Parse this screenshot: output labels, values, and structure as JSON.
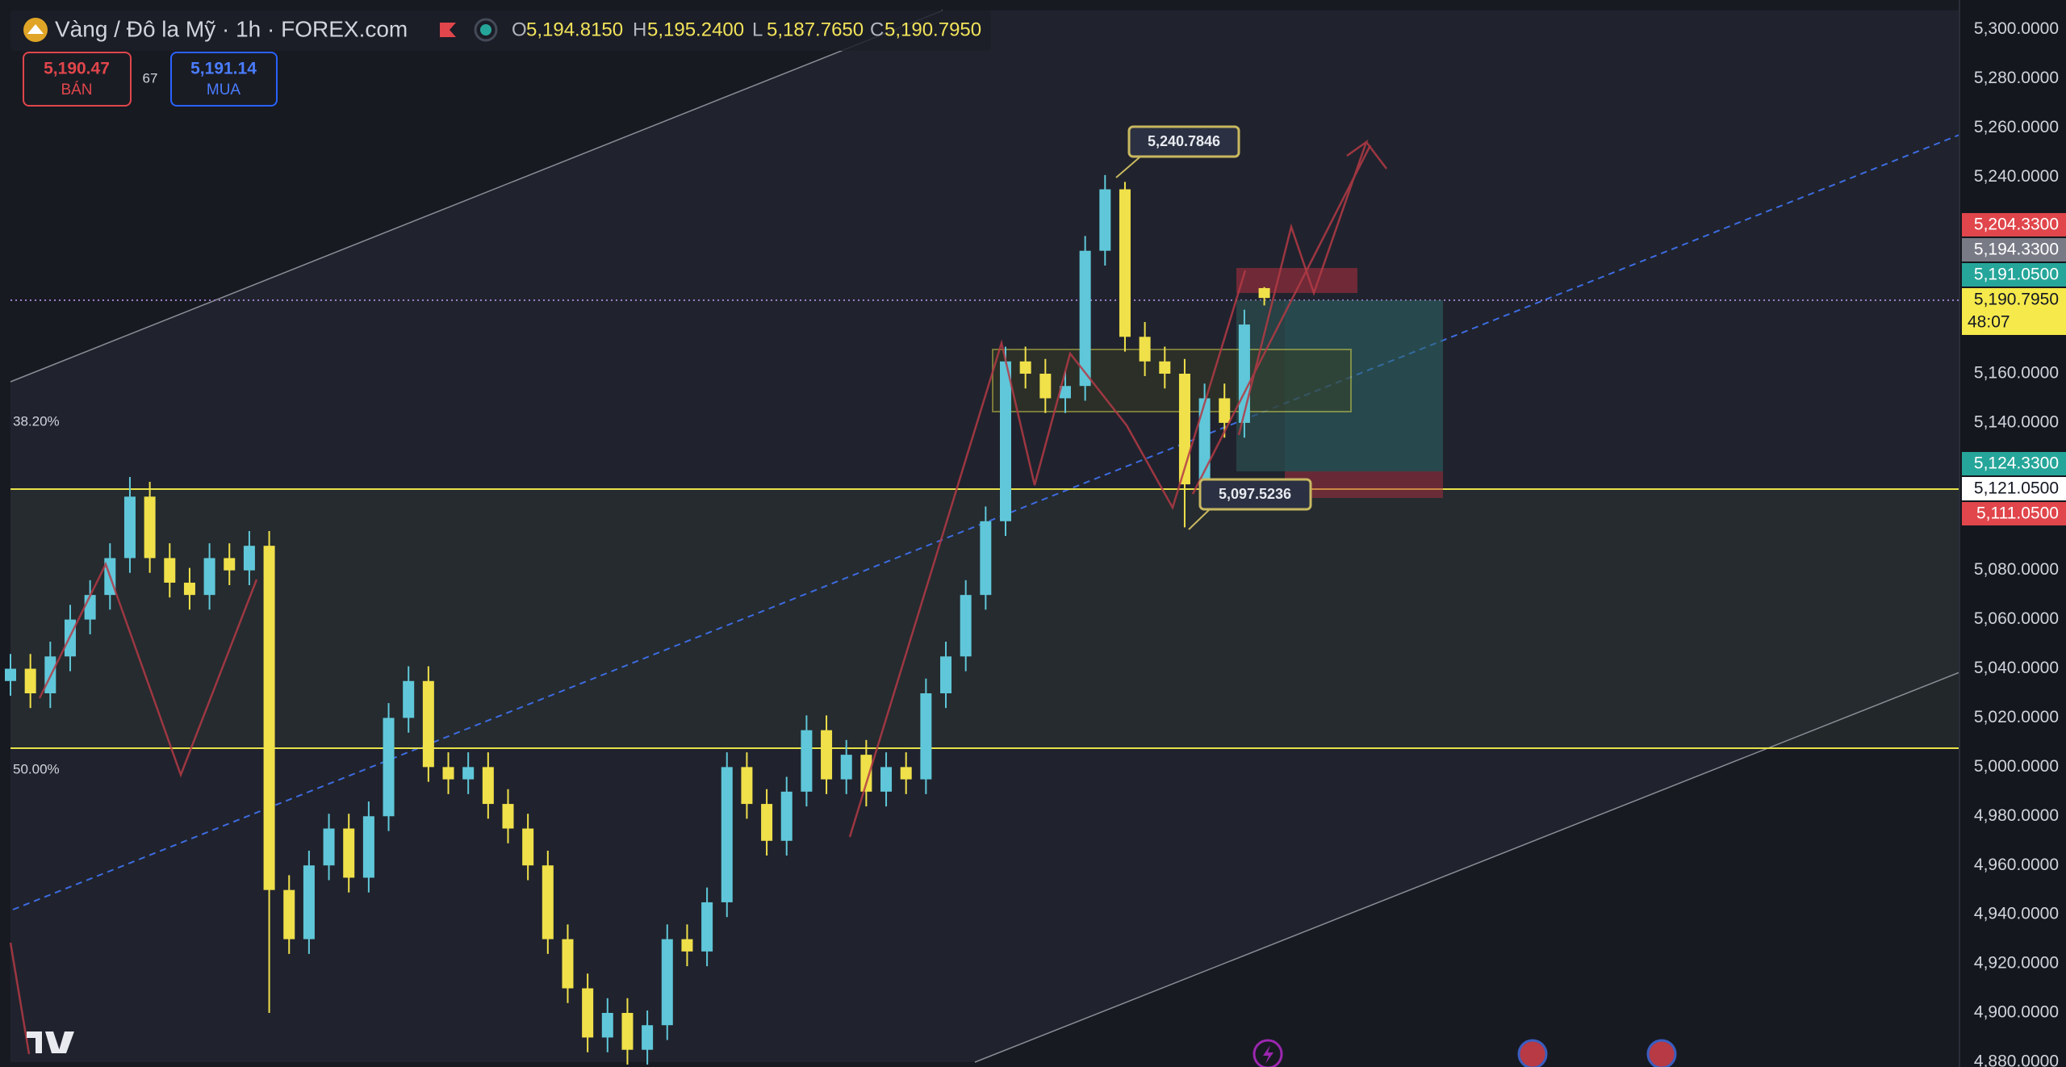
{
  "header": {
    "symbol": "Vàng / Đô la Mỹ · 1h · FOREX.com",
    "ohlc": [
      {
        "key": "O",
        "value": "5,194.8150"
      },
      {
        "key": "H",
        "value": "5,195.2400"
      },
      {
        "key": "L",
        "value": "5,187.7650"
      },
      {
        "key": "C",
        "value": "5,190.7950"
      }
    ]
  },
  "trade": {
    "sell_price": "5,190.47",
    "sell_label": "BÁN",
    "spread": "67",
    "buy_price": "5,191.14",
    "buy_label": "MUA"
  },
  "chart_data": {
    "type": "candlestick",
    "open": [
      5035,
      5040,
      5030,
      5045,
      5060,
      5070,
      5085,
      5110,
      5085,
      5075,
      5070,
      5085,
      5080,
      5090,
      4950,
      4930,
      4960,
      4975,
      4955,
      4980,
      5020,
      5035,
      5000,
      4995,
      5000,
      4985,
      4975,
      4960,
      4930,
      4910,
      4890,
      4900,
      4885,
      4895,
      4930,
      4925,
      4945,
      5000,
      4985,
      4970,
      4990,
      5015,
      4995,
      5005,
      4990,
      5000,
      4995,
      5030,
      5045,
      5070,
      5100,
      5165,
      5160,
      5150,
      5155,
      5210,
      5235,
      5175,
      5165,
      5160,
      5115,
      5150,
      5140,
      5194.815
    ],
    "high": [
      5046,
      5046,
      5051,
      5066,
      5076,
      5091,
      5118,
      5116,
      5091,
      5081,
      5091,
      5091,
      5096,
      5096,
      4956,
      4966,
      4981,
      4981,
      4986,
      5026,
      5041,
      5041,
      5006,
      5006,
      5006,
      4991,
      4981,
      4966,
      4936,
      4916,
      4906,
      4906,
      4901,
      4936,
      4936,
      4951,
      5006,
      5006,
      4991,
      4996,
      5021,
      5021,
      5011,
      5011,
      5006,
      5006,
      5036,
      5051,
      5076,
      5106,
      5171,
      5171,
      5166,
      5161,
      5216,
      5240.7846,
      5238,
      5181,
      5171,
      5166,
      5156,
      5156,
      5186,
      5195.24
    ],
    "low": [
      5029,
      5024,
      5024,
      5039,
      5054,
      5064,
      5079,
      5079,
      5069,
      5064,
      5064,
      5074,
      5074,
      4900,
      4924,
      4924,
      4954,
      4949,
      4949,
      4974,
      5014,
      4994,
      4989,
      4989,
      4979,
      4969,
      4954,
      4924,
      4904,
      4884,
      4884,
      4879,
      4879,
      4889,
      4919,
      4919,
      4939,
      4979,
      4964,
      4964,
      4984,
      4989,
      4989,
      4984,
      4984,
      4989,
      4989,
      5024,
      5039,
      5064,
      5094,
      5154,
      5144,
      5144,
      5149,
      5204,
      5169,
      5159,
      5154,
      5097.5236,
      5109,
      5134,
      5134,
      5187.765
    ],
    "close": [
      5040,
      5030,
      5045,
      5060,
      5070,
      5085,
      5110,
      5085,
      5075,
      5070,
      5085,
      5080,
      5090,
      4950,
      4930,
      4960,
      4975,
      4955,
      4980,
      5020,
      5035,
      5000,
      4995,
      5000,
      4985,
      4975,
      4960,
      4930,
      4910,
      4890,
      4900,
      4885,
      4895,
      4930,
      4925,
      4945,
      5000,
      4985,
      4970,
      4990,
      5015,
      4995,
      5005,
      4990,
      5000,
      4995,
      5030,
      5045,
      5070,
      5100,
      5165,
      5160,
      5150,
      5155,
      5210,
      5235,
      5175,
      5165,
      5160,
      5115,
      5150,
      5140,
      5180,
      5190.795
    ],
    "colors": {
      "up": "#5fc7d9",
      "down": "#f0e04a"
    },
    "ylim": [
      4878,
      5312
    ],
    "yticks": [
      {
        "value": 4880,
        "label": "4,880.0000"
      },
      {
        "value": 4900,
        "label": "4,900.0000"
      },
      {
        "value": 4920,
        "label": "4,920.0000"
      },
      {
        "value": 4940,
        "label": "4,940.0000"
      },
      {
        "value": 4960,
        "label": "4,960.0000"
      },
      {
        "value": 4980,
        "label": "4,980.0000"
      },
      {
        "value": 5000,
        "label": "5,000.0000"
      },
      {
        "value": 5020,
        "label": "5,020.0000"
      },
      {
        "value": 5040,
        "label": "5,040.0000"
      },
      {
        "value": 5060,
        "label": "5,060.0000"
      },
      {
        "value": 5080,
        "label": "5,080.0000"
      },
      {
        "value": 5140,
        "label": "5,140.0000"
      },
      {
        "value": 5160,
        "label": "5,160.0000"
      },
      {
        "value": 5240,
        "label": "5,240.0000"
      },
      {
        "value": 5260,
        "label": "5,260.0000"
      },
      {
        "value": 5280,
        "label": "5,280.0000"
      },
      {
        "value": 5300,
        "label": "5,300.0000"
      }
    ],
    "price_tags": [
      {
        "value": 5204.33,
        "label": "5,204.3300",
        "color": "#e0464b"
      },
      {
        "value": 5194.33,
        "label": "5,194.3300",
        "color": "#787b86"
      },
      {
        "value": 5191.05,
        "label": "5,191.0500",
        "color": "#26a69a"
      },
      {
        "value": 5190.795,
        "label": "5,190.7950",
        "color": "#f5e94c"
      },
      {
        "value": 5124.33,
        "label": "5,124.3300",
        "color": "#26a69a"
      },
      {
        "value": 5121.05,
        "label": "5,121.0500",
        "color": "#ffffff"
      },
      {
        "value": 5111.05,
        "label": "5,111.0500",
        "color": "#e0464b"
      }
    ],
    "countdown": "48:07",
    "fib_labels": [
      "38.20%",
      "50.00%"
    ],
    "callouts": [
      {
        "value": 5240.7846,
        "label": "5,240.7846"
      },
      {
        "value": 5097.5236,
        "label": "5,097.5236"
      }
    ]
  }
}
